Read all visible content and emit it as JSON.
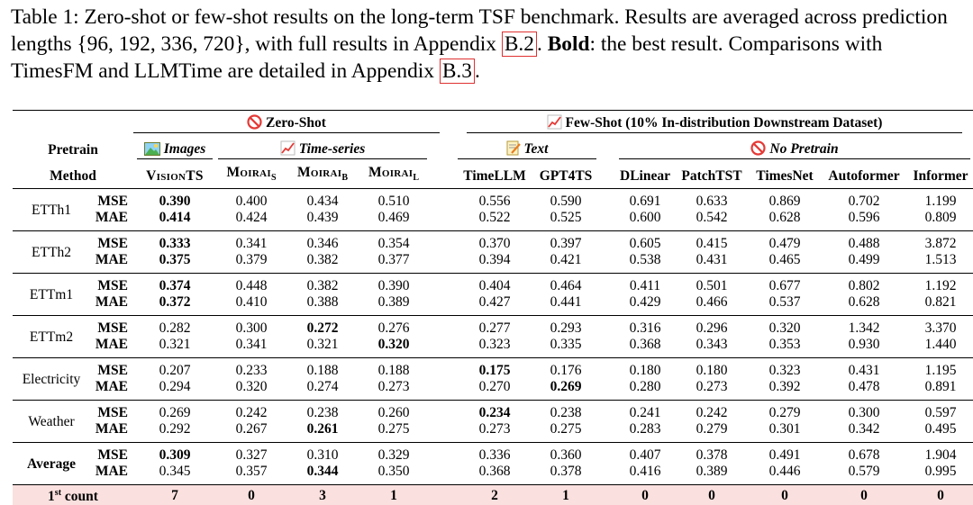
{
  "caption": {
    "prefix": "Table 1: Zero-shot or few-shot results on the long-term TSF benchmark. Results are averaged across prediction lengths {96, 192, 336, 720}, with full results in Appendix ",
    "ref1": "B.2",
    "mid1": ". ",
    "bold_word": "Bold",
    "mid2": ": the best result. Comparisons with TimesFM and LLMTime are detailed in Appendix ",
    "ref2": "B.3",
    "suffix": "."
  },
  "header": {
    "zero_shot": "Zero-Shot",
    "few_shot": "Few-Shot (10% In-distribution Downstream Dataset)",
    "pretrain": "Pretrain",
    "method": "Method",
    "images": "Images",
    "time_series": "Time-series",
    "text": "Text",
    "no_pretrain": "No Pretrain",
    "columns": [
      "VisionTS",
      "Moirai",
      "Moirai",
      "Moirai",
      "TimeLLM",
      "GPT4TS",
      "DLinear",
      "PatchTST",
      "TimesNet",
      "Autoformer",
      "Informer"
    ],
    "subscripts": [
      "",
      "S",
      "B",
      "L",
      "",
      "",
      "",
      "",
      "",
      "",
      ""
    ]
  },
  "metrics": [
    "MSE",
    "MAE"
  ],
  "rows": [
    {
      "name": "ETTh1",
      "mse": [
        "0.390",
        "0.400",
        "0.434",
        "0.510",
        "0.556",
        "0.590",
        "0.691",
        "0.633",
        "0.869",
        "0.702",
        "1.199"
      ],
      "mae": [
        "0.414",
        "0.424",
        "0.439",
        "0.469",
        "0.522",
        "0.525",
        "0.600",
        "0.542",
        "0.628",
        "0.596",
        "0.809"
      ],
      "bold_mse": [
        0
      ],
      "bold_mae": [
        0
      ]
    },
    {
      "name": "ETTh2",
      "mse": [
        "0.333",
        "0.341",
        "0.346",
        "0.354",
        "0.370",
        "0.397",
        "0.605",
        "0.415",
        "0.479",
        "0.488",
        "3.872"
      ],
      "mae": [
        "0.375",
        "0.379",
        "0.382",
        "0.377",
        "0.394",
        "0.421",
        "0.538",
        "0.431",
        "0.465",
        "0.499",
        "1.513"
      ],
      "bold_mse": [
        0
      ],
      "bold_mae": [
        0
      ]
    },
    {
      "name": "ETTm1",
      "mse": [
        "0.374",
        "0.448",
        "0.382",
        "0.390",
        "0.404",
        "0.464",
        "0.411",
        "0.501",
        "0.677",
        "0.802",
        "1.192"
      ],
      "mae": [
        "0.372",
        "0.410",
        "0.388",
        "0.389",
        "0.427",
        "0.441",
        "0.429",
        "0.466",
        "0.537",
        "0.628",
        "0.821"
      ],
      "bold_mse": [
        0
      ],
      "bold_mae": [
        0
      ]
    },
    {
      "name": "ETTm2",
      "mse": [
        "0.282",
        "0.300",
        "0.272",
        "0.276",
        "0.277",
        "0.293",
        "0.316",
        "0.296",
        "0.320",
        "1.342",
        "3.370"
      ],
      "mae": [
        "0.321",
        "0.341",
        "0.321",
        "0.320",
        "0.323",
        "0.335",
        "0.368",
        "0.343",
        "0.353",
        "0.930",
        "1.440"
      ],
      "bold_mse": [
        2
      ],
      "bold_mae": [
        3
      ]
    },
    {
      "name": "Electricity",
      "mse": [
        "0.207",
        "0.233",
        "0.188",
        "0.188",
        "0.175",
        "0.176",
        "0.180",
        "0.180",
        "0.323",
        "0.431",
        "1.195"
      ],
      "mae": [
        "0.294",
        "0.320",
        "0.274",
        "0.273",
        "0.270",
        "0.269",
        "0.280",
        "0.273",
        "0.392",
        "0.478",
        "0.891"
      ],
      "bold_mse": [
        4
      ],
      "bold_mae": [
        5
      ]
    },
    {
      "name": "Weather",
      "mse": [
        "0.269",
        "0.242",
        "0.238",
        "0.260",
        "0.234",
        "0.238",
        "0.241",
        "0.242",
        "0.279",
        "0.300",
        "0.597"
      ],
      "mae": [
        "0.292",
        "0.267",
        "0.261",
        "0.275",
        "0.273",
        "0.275",
        "0.283",
        "0.279",
        "0.301",
        "0.342",
        "0.495"
      ],
      "bold_mse": [
        4
      ],
      "bold_mae": [
        2
      ]
    },
    {
      "name": "Average",
      "mse": [
        "0.309",
        "0.327",
        "0.310",
        "0.329",
        "0.336",
        "0.360",
        "0.407",
        "0.378",
        "0.491",
        "0.678",
        "1.904"
      ],
      "mae": [
        "0.345",
        "0.357",
        "0.344",
        "0.350",
        "0.368",
        "0.378",
        "0.416",
        "0.389",
        "0.446",
        "0.579",
        "0.995"
      ],
      "bold_mse": [
        0
      ],
      "bold_mae": [
        2
      ],
      "bold_name": true
    }
  ],
  "count_row": {
    "label_main": "1",
    "label_sup": "st",
    "label_rest": " count",
    "values": [
      "7",
      "0",
      "3",
      "1",
      "2",
      "1",
      "0",
      "0",
      "0",
      "0",
      "0"
    ]
  },
  "colors": {
    "highlight": "#fae0de",
    "ref_box": "#e03030"
  },
  "icons": [
    "no-entry-icon",
    "chart-icon",
    "image-icon",
    "memo-icon"
  ]
}
